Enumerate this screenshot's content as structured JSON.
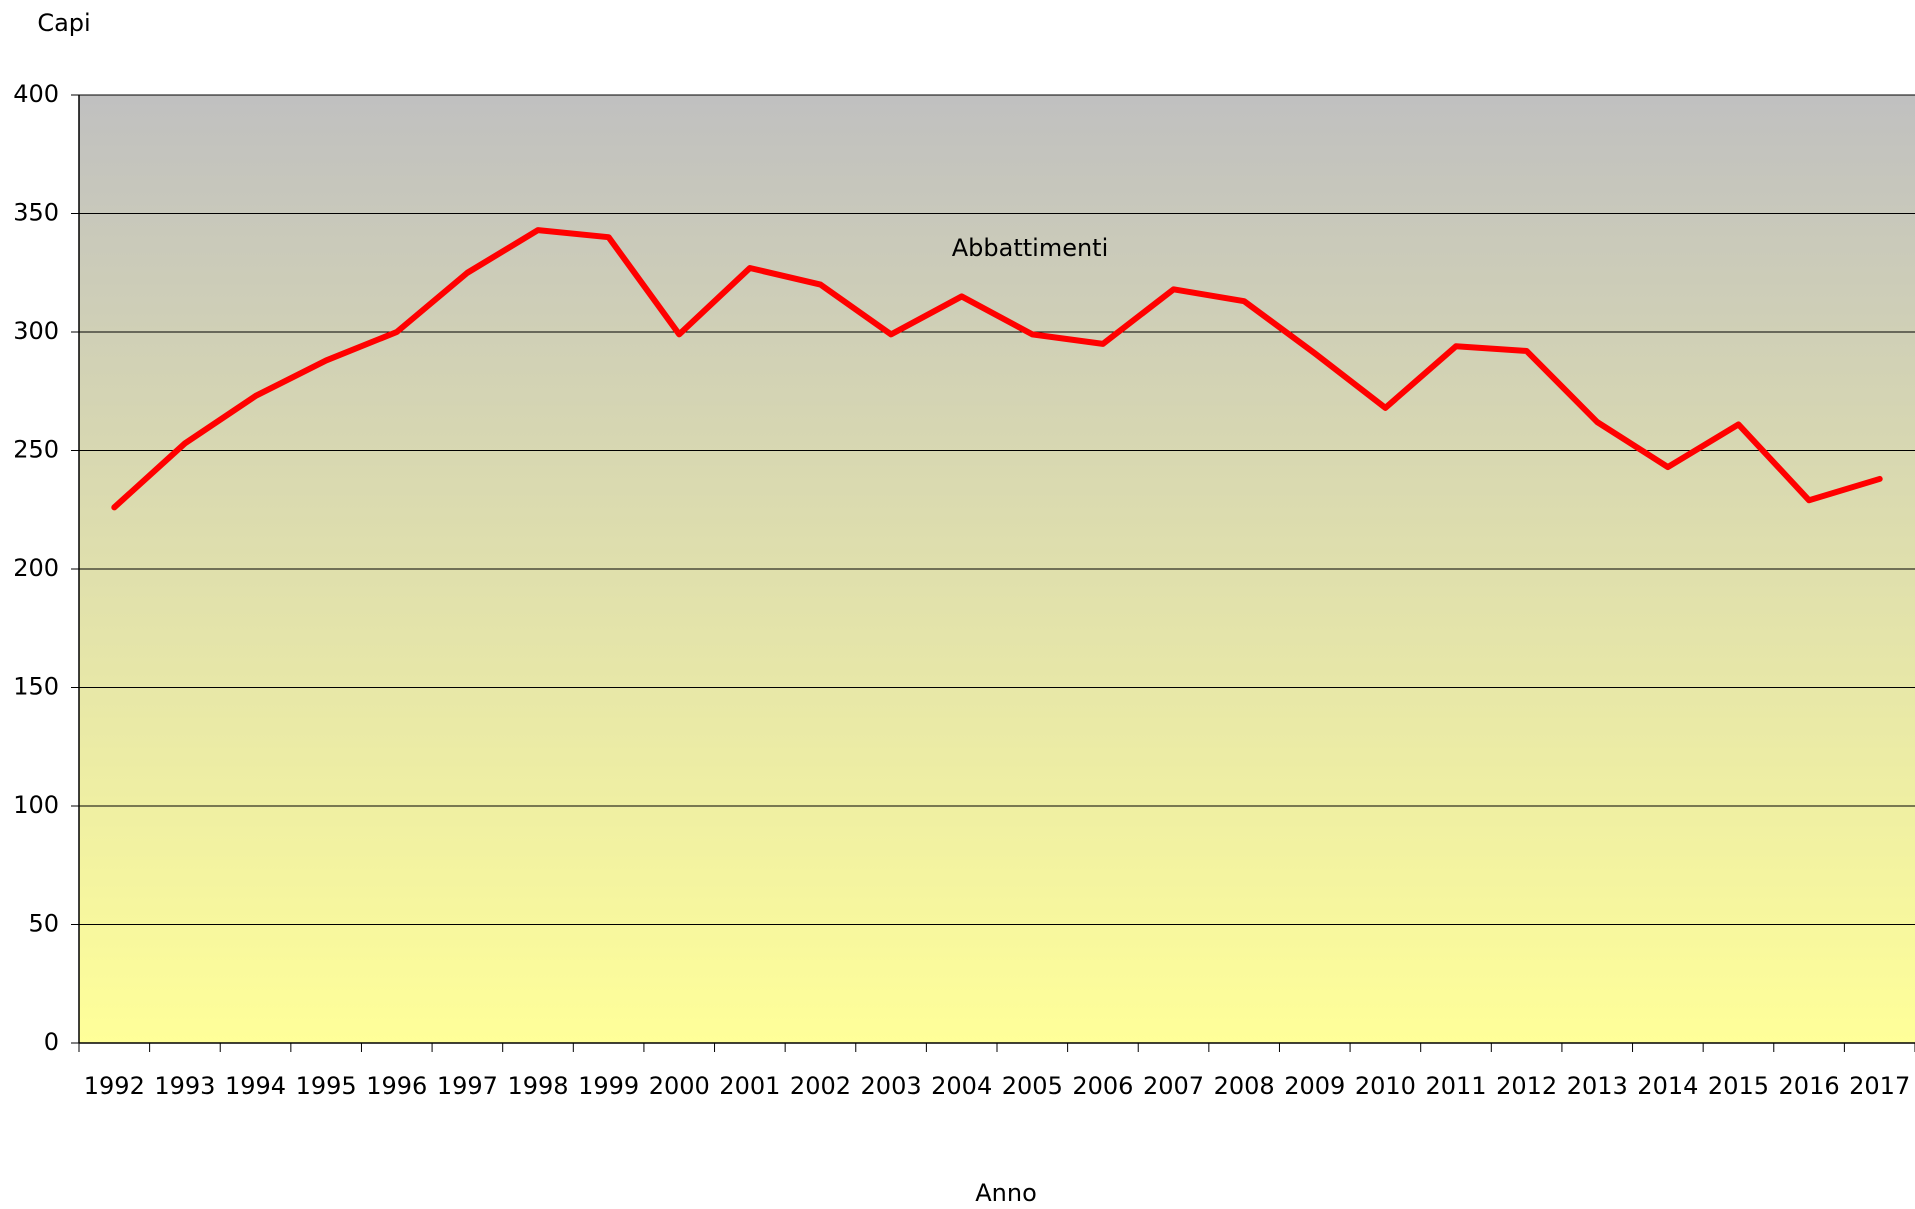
{
  "chart_data": {
    "type": "line",
    "y_label": "Capi",
    "x_label": "Anno",
    "annotation": "Abbattimenti",
    "categories": [
      "1992",
      "1993",
      "1994",
      "1995",
      "1996",
      "1997",
      "1998",
      "1999",
      "2000",
      "2001",
      "2002",
      "2003",
      "2004",
      "2005",
      "2006",
      "2007",
      "2008",
      "2009",
      "2010",
      "2011",
      "2012",
      "2013",
      "2014",
      "2015",
      "2016",
      "2017"
    ],
    "series": [
      {
        "name": "Abbattimenti",
        "color": "#ff0000",
        "values": [
          226,
          253,
          273,
          288,
          300,
          325,
          343,
          340,
          299,
          327,
          320,
          299,
          315,
          299,
          295,
          318,
          313,
          291,
          268,
          294,
          292,
          262,
          243,
          261,
          229,
          238
        ]
      }
    ],
    "ylim": [
      0,
      400
    ],
    "yticks": [
      0,
      50,
      100,
      150,
      200,
      250,
      300,
      350,
      400
    ],
    "grid": true
  }
}
